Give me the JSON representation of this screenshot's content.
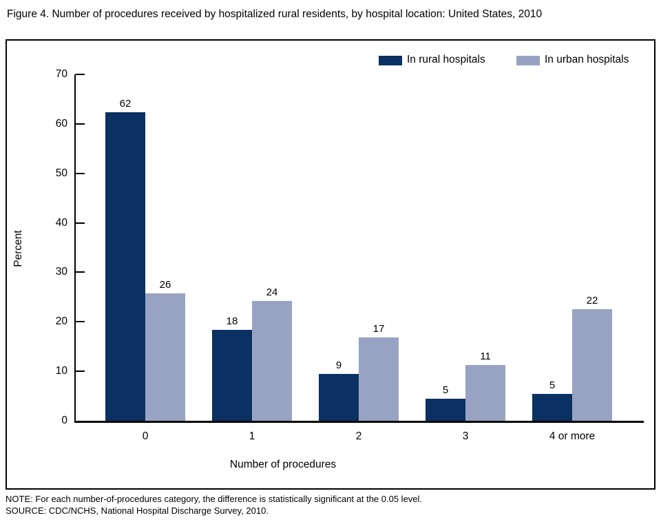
{
  "title": "Figure 4. Number of procedures received by hospitalized rural residents, by hospital location: United States, 2010",
  "legend": {
    "rural": {
      "label": "In rural hospitals",
      "color": "#0a3161"
    },
    "urban": {
      "label": "In urban hospitals",
      "color": "#98a3c4"
    }
  },
  "y_axis": {
    "label": "Percent",
    "ticks": [
      0,
      10,
      20,
      30,
      40,
      50,
      60,
      70
    ],
    "max": 70
  },
  "x_axis": {
    "label": "Number of procedures",
    "categories": [
      "0",
      "1",
      "2",
      "3",
      "4 or more"
    ]
  },
  "chart_data": {
    "type": "bar",
    "title": "Figure 4. Number of procedures received by hospitalized rural residents, by hospital location: United States, 2010",
    "categories": [
      "0",
      "1",
      "2",
      "3",
      "4 or more"
    ],
    "series": [
      {
        "name": "In rural hospitals",
        "color": "#0a3161",
        "values": [
          62,
          18,
          9,
          5,
          5
        ],
        "bar_heights_percent": [
          62.4,
          18.4,
          9.5,
          4.5,
          5.4
        ]
      },
      {
        "name": "In urban hospitals",
        "color": "#98a3c4",
        "values": [
          26,
          24,
          17,
          11,
          22
        ],
        "bar_heights_percent": [
          25.8,
          24.2,
          16.9,
          11.3,
          22.5
        ]
      }
    ],
    "xlabel": "Number of procedures",
    "ylabel": "Percent",
    "ylim": [
      0,
      70
    ],
    "grid": false,
    "legend_position": "top-right"
  },
  "notes": {
    "note": "NOTE: For each number-of-procedures category, the difference is statistically significant at the 0.05 level.",
    "source": "SOURCE: CDC/NCHS, National Hospital Discharge Survey, 2010."
  }
}
